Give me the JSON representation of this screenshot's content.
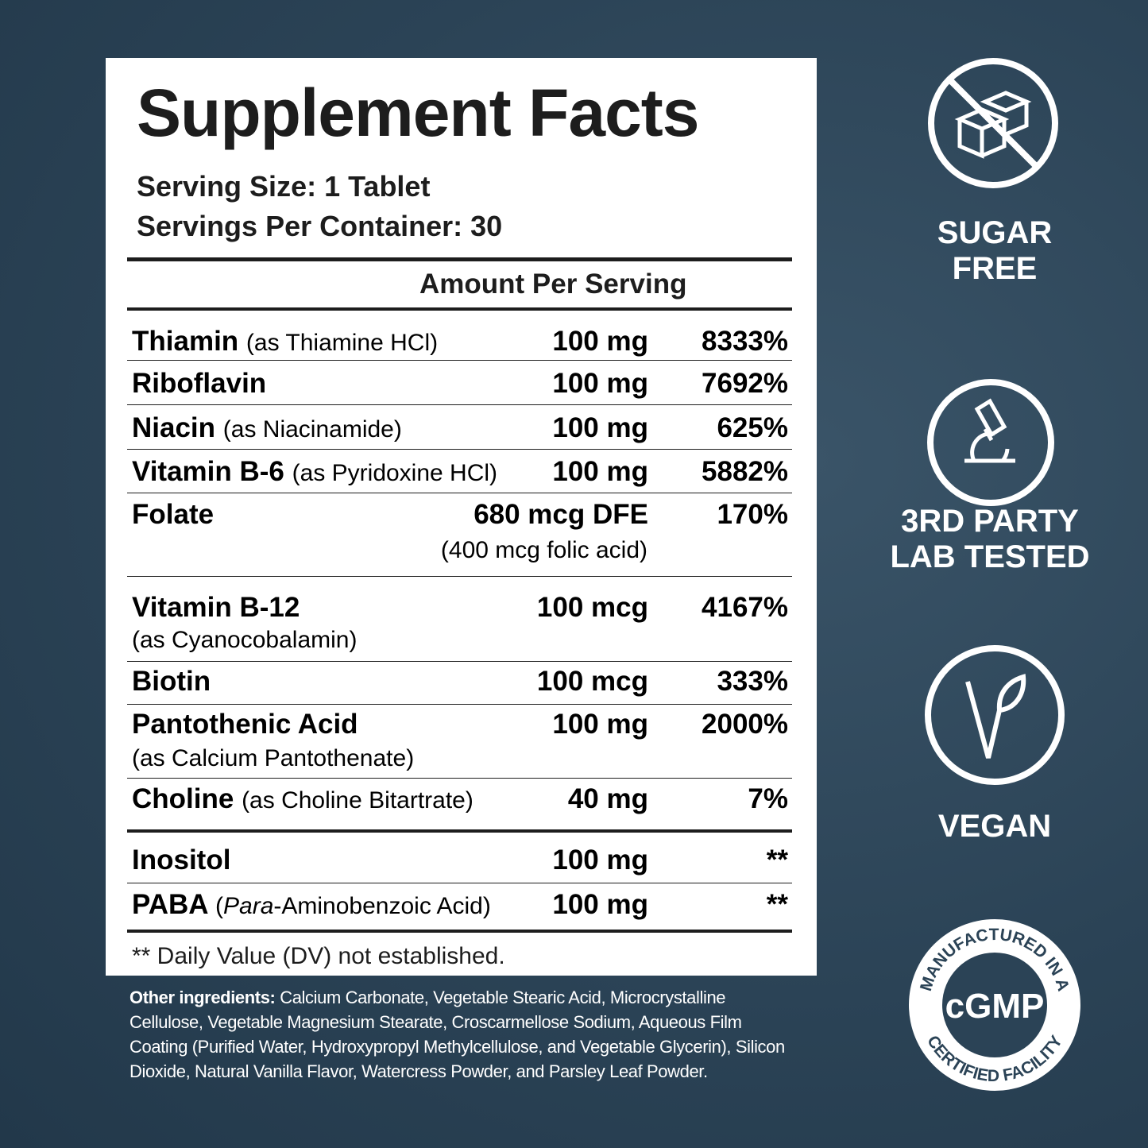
{
  "facts": {
    "title": "Supplement Facts",
    "serving_size": "Serving Size: 1 Tablet",
    "servings_per_container": "Servings Per Container: 30",
    "amount_header": "Amount Per Serving",
    "rows": [
      {
        "name": "Thiamin",
        "note": "(as Thiamine HCl)",
        "amount": "100 mg",
        "dv": "8333%"
      },
      {
        "name": "Riboflavin",
        "amount": "100 mg",
        "dv": "7692%"
      },
      {
        "name": "Niacin",
        "note": "(as Niacinamide)",
        "amount": "100 mg",
        "dv": "625%"
      },
      {
        "name": "Vitamin B-6",
        "note": "(as Pyridoxine HCl)",
        "amount": "100 mg",
        "dv": "5882%"
      },
      {
        "name": "Folate",
        "amount": "680 mcg DFE",
        "amount_note": "(400 mcg folic acid)",
        "dv": "170%"
      },
      {
        "name": "Vitamin B-12",
        "note": "(as Cyanocobalamin)",
        "amount": "100 mcg",
        "dv": "4167%"
      },
      {
        "name": "Biotin",
        "amount": "100 mcg",
        "dv": "333%"
      },
      {
        "name": "Pantothenic Acid",
        "note": "(as Calcium Pantothenate)",
        "amount": "100 mg",
        "dv": "2000%"
      },
      {
        "name": "Choline",
        "note": "(as Choline Bitartrate)",
        "amount": "40 mg",
        "dv": "7%"
      },
      {
        "name": "Inositol",
        "amount": "100 mg",
        "dv": "**"
      },
      {
        "name": "PABA",
        "note_open": "(",
        "note_italic": "Para",
        "note_rest": "-Aminobenzoic Acid)",
        "amount": "100 mg",
        "dv": "**"
      }
    ],
    "footnote": "** Daily Value (DV) not established."
  },
  "other_ingredients": {
    "label": "Other ingredients:",
    "text": "Calcium Carbonate, Vegetable Stearic Acid, Microcrystalline Cellulose, Vegetable Magnesium Stearate, Croscarmellose Sodium, Aqueous Film Coating (Purified Water, Hydroxypropyl Methylcellulose, and Vegetable Glycerin), Silicon Dioxide, Natural Vanilla Flavor, Watercress Powder, and Parsley Leaf Powder."
  },
  "badges": [
    {
      "lines": [
        "SUGAR",
        "FREE"
      ]
    },
    {
      "lines": [
        "3RD PARTY",
        "LAB TESTED"
      ]
    },
    {
      "lines": [
        "VEGAN"
      ]
    },
    {
      "top_text": "MANUFACTURED IN A",
      "center": "cGMP",
      "bottom_text": "CERTIFIED FACILITY"
    }
  ]
}
